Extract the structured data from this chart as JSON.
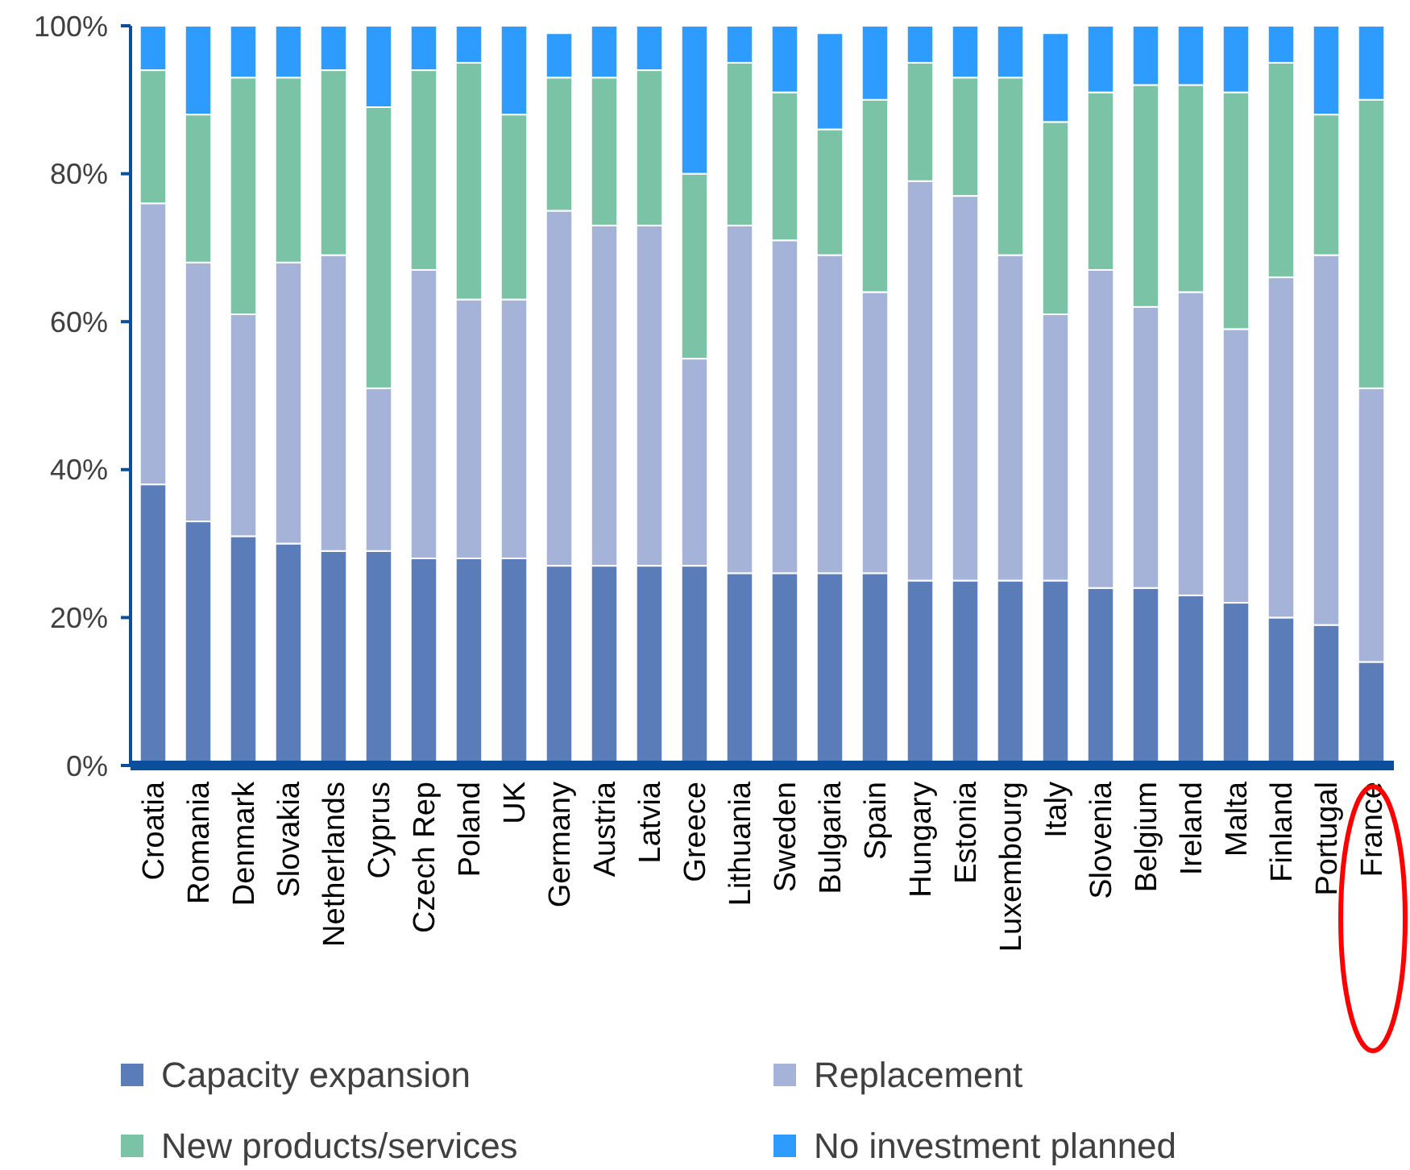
{
  "chart_data": {
    "type": "bar",
    "stacked": true,
    "categories": [
      "Croatia",
      "Romania",
      "Denmark",
      "Slovakia",
      "Netherlands",
      "Cyprus",
      "Czech Rep",
      "Poland",
      "UK",
      "Germany",
      "Austria",
      "Latvia",
      "Greece",
      "Lithuania",
      "Sweden",
      "Bulgaria",
      "Spain",
      "Hungary",
      "Estonia",
      "Luxembourg",
      "Italy",
      "Slovenia",
      "Belgium",
      "Ireland",
      "Malta",
      "Finland",
      "Portugal",
      "France"
    ],
    "series": [
      {
        "name": "Capacity expansion",
        "color": "#5a7dba",
        "values": [
          38,
          33,
          31,
          30,
          29,
          29,
          28,
          28,
          28,
          27,
          27,
          27,
          27,
          26,
          26,
          26,
          26,
          25,
          25,
          25,
          25,
          24,
          24,
          23,
          22,
          20,
          19,
          14
        ]
      },
      {
        "name": "Replacement",
        "color": "#a5b3d8",
        "values": [
          38,
          35,
          30,
          38,
          40,
          22,
          39,
          35,
          35,
          48,
          46,
          46,
          28,
          47,
          45,
          43,
          38,
          54,
          52,
          44,
          36,
          43,
          38,
          41,
          37,
          46,
          50,
          37
        ]
      },
      {
        "name": "New products/services",
        "color": "#7bc3a6",
        "values": [
          18,
          20,
          32,
          25,
          25,
          38,
          27,
          32,
          25,
          18,
          20,
          21,
          25,
          22,
          20,
          17,
          26,
          16,
          16,
          24,
          26,
          24,
          30,
          28,
          32,
          29,
          19,
          39
        ]
      },
      {
        "name": "No investment planned",
        "color": "#2e9bff",
        "values": [
          6,
          12,
          7,
          7,
          6,
          11,
          6,
          5,
          12,
          6,
          7,
          6,
          20,
          5,
          9,
          13,
          10,
          5,
          7,
          7,
          12,
          9,
          8,
          8,
          9,
          5,
          12,
          10
        ]
      }
    ],
    "ylim": [
      0,
      100
    ],
    "yticks": [
      {
        "value": 0,
        "label": "0%"
      },
      {
        "value": 20,
        "label": "20%"
      },
      {
        "value": 40,
        "label": "40%"
      },
      {
        "value": 60,
        "label": "60%"
      },
      {
        "value": 80,
        "label": "80%"
      },
      {
        "value": 100,
        "label": "100%"
      }
    ],
    "grid": false,
    "legend": "bottom"
  }
}
